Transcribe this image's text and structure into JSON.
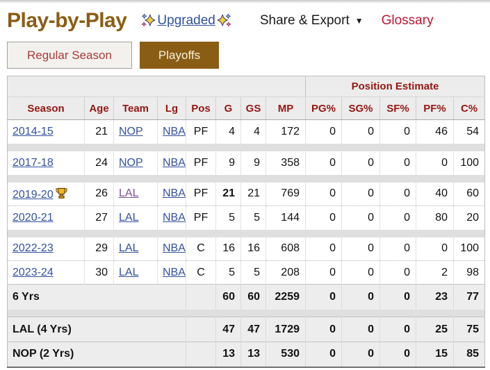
{
  "header": {
    "title": "Play-by-Play",
    "upgraded_label": "Upgraded",
    "sparkles_icon": "sparkles",
    "share_export_label": "Share & Export",
    "caret_icon": "▼",
    "glossary_label": "Glossary"
  },
  "tabs": [
    {
      "label": "Regular Season",
      "active": false
    },
    {
      "label": "Playoffs",
      "active": true
    }
  ],
  "colors": {
    "accent_brown": "#8a5d15",
    "table_header_red": "#941712",
    "glossary_red": "#c41230",
    "tab_red": "#aa3939",
    "link_blue": "#3150a0",
    "link_visited_purple": "#7c5295"
  },
  "table": {
    "group_header": {
      "blank": "",
      "label": "Position Estimate"
    },
    "columns": [
      "Season",
      "Age",
      "Team",
      "Lg",
      "Pos",
      "G",
      "GS",
      "MP",
      "PG%",
      "SG%",
      "SF%",
      "PF%",
      "C%"
    ],
    "trophy_icon": "trophy",
    "rows": [
      {
        "season": "2014-15",
        "trophy": false,
        "age": "21",
        "team": "NOP",
        "team_visited": false,
        "lg": "NBA",
        "pos": "PF",
        "g": "4",
        "g_bold": false,
        "gs": "4",
        "mp": "172",
        "pg": "0",
        "sg": "0",
        "sf": "0",
        "pf": "46",
        "c": "54",
        "spacer_after": true
      },
      {
        "season": "2017-18",
        "trophy": false,
        "age": "24",
        "team": "NOP",
        "team_visited": false,
        "lg": "NBA",
        "pos": "PF",
        "g": "9",
        "g_bold": false,
        "gs": "9",
        "mp": "358",
        "pg": "0",
        "sg": "0",
        "sf": "0",
        "pf": "0",
        "c": "100",
        "spacer_after": true
      },
      {
        "season": "2019-20",
        "trophy": true,
        "age": "26",
        "team": "LAL",
        "team_visited": true,
        "lg": "NBA",
        "pos": "PF",
        "g": "21",
        "g_bold": true,
        "gs": "21",
        "mp": "769",
        "pg": "0",
        "sg": "0",
        "sf": "0",
        "pf": "40",
        "c": "60",
        "spacer_after": false
      },
      {
        "season": "2020-21",
        "trophy": false,
        "age": "27",
        "team": "LAL",
        "team_visited": false,
        "lg": "NBA",
        "pos": "PF",
        "g": "5",
        "g_bold": false,
        "gs": "5",
        "mp": "144",
        "pg": "0",
        "sg": "0",
        "sf": "0",
        "pf": "80",
        "c": "20",
        "spacer_after": true
      },
      {
        "season": "2022-23",
        "trophy": false,
        "age": "29",
        "team": "LAL",
        "team_visited": false,
        "lg": "NBA",
        "pos": "C",
        "g": "16",
        "g_bold": false,
        "gs": "16",
        "mp": "608",
        "pg": "0",
        "sg": "0",
        "sf": "0",
        "pf": "0",
        "c": "100",
        "spacer_after": false
      },
      {
        "season": "2023-24",
        "trophy": false,
        "age": "30",
        "team": "LAL",
        "team_visited": false,
        "lg": "NBA",
        "pos": "C",
        "g": "5",
        "g_bold": false,
        "gs": "5",
        "mp": "208",
        "pg": "0",
        "sg": "0",
        "sf": "0",
        "pf": "2",
        "c": "98",
        "spacer_after": false
      }
    ],
    "total_rows": [
      {
        "label": "6 Yrs",
        "g": "60",
        "gs": "60",
        "mp": "2259",
        "pg": "0",
        "sg": "0",
        "sf": "0",
        "pf": "23",
        "c": "77",
        "spacer_after": true
      },
      {
        "label": "LAL (4 Yrs)",
        "g": "47",
        "gs": "47",
        "mp": "1729",
        "pg": "0",
        "sg": "0",
        "sf": "0",
        "pf": "25",
        "c": "75",
        "spacer_after": false
      },
      {
        "label": "NOP (2 Yrs)",
        "g": "13",
        "gs": "13",
        "mp": "530",
        "pg": "0",
        "sg": "0",
        "sf": "0",
        "pf": "15",
        "c": "85",
        "spacer_after": false
      }
    ]
  }
}
